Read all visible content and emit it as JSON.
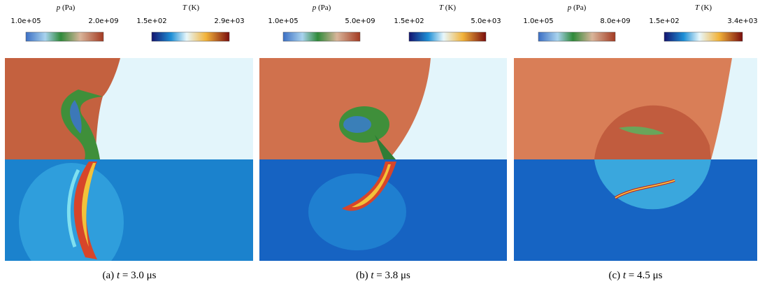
{
  "panels": [
    {
      "pressure": {
        "symbol": "p",
        "unit": "(Pa)",
        "min": "1.0e+05",
        "max": "2.0e+09"
      },
      "temperature": {
        "symbol": "T",
        "unit": "(K)",
        "min": "1.5e+02",
        "max": "2.9e+03"
      },
      "caption": {
        "tag": "(a)",
        "symbol": "t",
        "rest": "= 3.0 μs"
      }
    },
    {
      "pressure": {
        "symbol": "p",
        "unit": "(Pa)",
        "min": "1.0e+05",
        "max": "5.0e+09"
      },
      "temperature": {
        "symbol": "T",
        "unit": "(K)",
        "min": "1.5e+02",
        "max": "5.0e+03"
      },
      "caption": {
        "tag": "(b)",
        "symbol": "t",
        "rest": "= 3.8 μs"
      }
    },
    {
      "pressure": {
        "symbol": "p",
        "unit": "(Pa)",
        "min": "1.0e+05",
        "max": "8.0e+09"
      },
      "temperature": {
        "symbol": "T",
        "unit": "(K)",
        "min": "1.5e+02",
        "max": "3.4e+03"
      },
      "caption": {
        "tag": "(c)",
        "symbol": "t",
        "rest": "= 4.5 μs"
      }
    }
  ]
}
